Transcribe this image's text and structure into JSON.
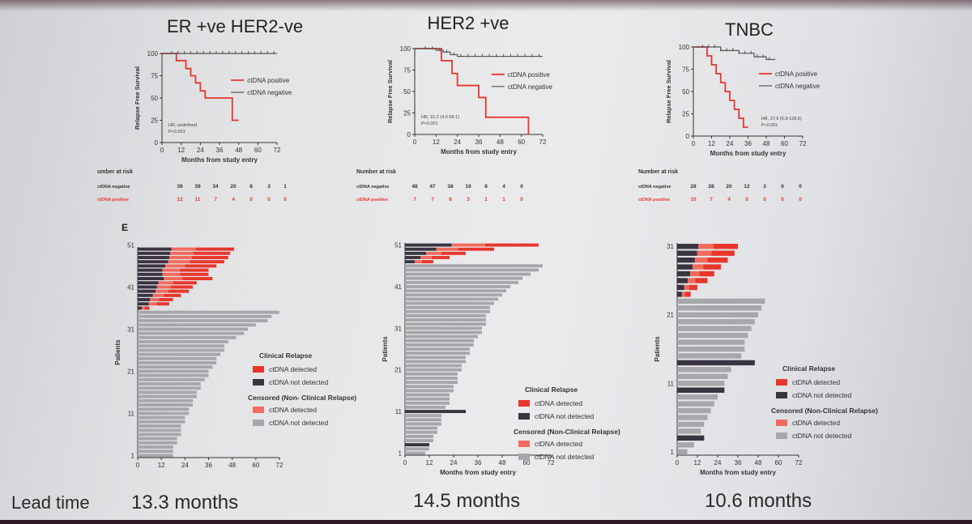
{
  "panels": [
    {
      "title": "ER +ve HER2-ve",
      "lead_time": "13.3 months",
      "km": {
        "ylabel": "Relapse Free Survival",
        "xlabel": "Months from study entry",
        "yticks": [
          "0",
          "25",
          "50",
          "75",
          "100"
        ],
        "xticks": [
          "0",
          "12",
          "24",
          "36",
          "48",
          "60",
          "72"
        ],
        "legend": [
          "ctDNA positive",
          "ctDNA negative"
        ],
        "hr_lines": [
          "HR, undefined",
          "P<0.001"
        ],
        "hr_legend_pos": "bottom-left"
      },
      "risk": {
        "header": "umber at risk",
        "rows": [
          {
            "label": "ctDNA negative",
            "values": [
              "39",
              "39",
              "34",
              "20",
              "8",
              "3",
              "1"
            ]
          },
          {
            "label": "ctDNA positive",
            "values": [
              "12",
              "11",
              "7",
              "4",
              "0",
              "0",
              "0"
            ]
          }
        ]
      },
      "swimmer": {
        "panel_letter": "E",
        "ylabel": "Patients",
        "xlabel": "",
        "xticks": [
          "0",
          "12",
          "24",
          "36",
          "48",
          "60",
          "72"
        ],
        "yticks": [
          "1",
          "11",
          "21",
          "31",
          "41",
          "51"
        ]
      }
    },
    {
      "title": "HER2 +ve",
      "lead_time": "14.5 months",
      "km": {
        "ylabel": "Relapse Free Survival",
        "xlabel": "Months from study entry",
        "yticks": [
          "0",
          "25",
          "50",
          "75",
          "100"
        ],
        "xticks": [
          "0",
          "12",
          "24",
          "36",
          "48",
          "60",
          "72"
        ],
        "legend": [
          "ctDNA positive",
          "ctDNA negative"
        ],
        "hr_lines": [
          "HR, 15.2 (4.0-58.1)",
          "P<0.001"
        ]
      },
      "risk": {
        "header": "Number at risk",
        "rows": [
          {
            "label": "ctDNA negative",
            "values": [
              "48",
              "47",
              "38",
              "19",
              "8",
              "4",
              "0"
            ]
          },
          {
            "label": "ctDNA positive",
            "values": [
              "7",
              "7",
              "6",
              "3",
              "1",
              "1",
              "0"
            ]
          }
        ]
      },
      "swimmer": {
        "panel_letter": "",
        "ylabel": "Patients",
        "xlabel": "Months from study entry",
        "xticks": [
          "0",
          "12",
          "24",
          "36",
          "48",
          "60",
          "72"
        ],
        "yticks": [
          "1",
          "11",
          "21",
          "31",
          "41",
          "51"
        ]
      }
    },
    {
      "title": "TNBC",
      "lead_time": "10.6 months",
      "km": {
        "ylabel": "Relapse Free Survival",
        "xlabel": "Months from study entry",
        "yticks": [
          "0",
          "25",
          "50",
          "75",
          "100"
        ],
        "xticks": [
          "0",
          "12",
          "24",
          "36",
          "48",
          "60",
          "72"
        ],
        "legend": [
          "ctDNA positive",
          "ctDNA negative"
        ],
        "hr_lines": [
          "HR, 27.6 (5.9-128.6)",
          "P<0.001"
        ]
      },
      "risk": {
        "header": "Number at risk",
        "rows": [
          {
            "label": "ctDNA negative",
            "values": [
              "28",
              "28",
              "20",
              "12",
              "3",
              "0",
              "0"
            ]
          },
          {
            "label": "ctDNA positive",
            "values": [
              "10",
              "7",
              "4",
              "0",
              "0",
              "0",
              "0"
            ]
          }
        ]
      },
      "swimmer": {
        "panel_letter": "",
        "ylabel": "Patients",
        "xlabel": "Months from study entry",
        "xticks": [
          "0",
          "12",
          "24",
          "36",
          "48",
          "60",
          "72"
        ],
        "yticks": [
          "1",
          "11",
          "21",
          "31"
        ]
      }
    }
  ],
  "lead_time_label": "Lead time",
  "legend": {
    "clinical_title": "Clinical Relapse",
    "clinical_items": [
      "ctDNA detected",
      "ctDNA not detected"
    ],
    "censored_title": "Censored (Non- Clinical Relapse)",
    "censored_title_alt": "Censored (Non-Clinical Relapse)",
    "censored_items": [
      "ctDNA detected",
      "ctDNA not detected"
    ]
  },
  "colors": {
    "red": "#e8362b",
    "dark": "#3a3340",
    "light_red": "#f26a5e",
    "gray": "#a6a7aa",
    "km_neg": "#555555"
  },
  "chart_data": [
    {
      "type": "line",
      "title": "ER +ve HER2-ve",
      "xlabel": "Months from study entry",
      "ylabel": "Relapse Free Survival",
      "xlim": [
        0,
        72
      ],
      "ylim": [
        0,
        100
      ],
      "series": [
        {
          "name": "ctDNA positive",
          "x": [
            0,
            6,
            9,
            12,
            15,
            18,
            21,
            24,
            27,
            30,
            36,
            42,
            44,
            48
          ],
          "y": [
            100,
            100,
            92,
            92,
            83,
            75,
            67,
            58,
            50,
            50,
            50,
            50,
            25,
            25
          ]
        },
        {
          "name": "ctDNA negative",
          "x": [
            0,
            72
          ],
          "y": [
            100,
            100
          ]
        }
      ]
    },
    {
      "type": "line",
      "title": "HER2 +ve",
      "xlabel": "Months from study entry",
      "ylabel": "Relapse Free Survival",
      "xlim": [
        0,
        72
      ],
      "ylim": [
        0,
        100
      ],
      "series": [
        {
          "name": "ctDNA positive",
          "x": [
            0,
            12,
            15,
            18,
            21,
            24,
            30,
            36,
            40,
            48,
            60,
            64
          ],
          "y": [
            100,
            100,
            86,
            86,
            71,
            57,
            57,
            43,
            20,
            20,
            20,
            0
          ]
        },
        {
          "name": "ctDNA negative",
          "x": [
            0,
            8,
            12,
            16,
            20,
            24,
            30,
            72
          ],
          "y": [
            100,
            100,
            98,
            96,
            93,
            91,
            91,
            91
          ]
        }
      ]
    },
    {
      "type": "line",
      "title": "TNBC",
      "xlabel": "Months from study entry",
      "ylabel": "Relapse Free Survival",
      "xlim": [
        0,
        72
      ],
      "ylim": [
        0,
        100
      ],
      "series": [
        {
          "name": "ctDNA positive",
          "x": [
            0,
            6,
            9,
            12,
            15,
            18,
            21,
            24,
            27,
            30,
            33,
            36
          ],
          "y": [
            100,
            100,
            90,
            80,
            70,
            60,
            50,
            40,
            30,
            20,
            10,
            10
          ]
        },
        {
          "name": "ctDNA negative",
          "x": [
            0,
            12,
            18,
            24,
            30,
            36,
            40,
            44,
            48,
            54
          ],
          "y": [
            100,
            100,
            96,
            96,
            93,
            93,
            89,
            89,
            86,
            86
          ]
        }
      ]
    },
    {
      "type": "bar",
      "title": "",
      "subtype": "swimmer",
      "ylabel": "Patients",
      "xlim": [
        0,
        72
      ],
      "bars_by_row": "patient 51 (top) to patient 1 (bottom), months of follow up",
      "series": [
        {
          "name": "ER +ve HER2-ve",
          "totals": [
            49,
            47,
            46,
            44,
            40,
            36,
            36,
            38,
            30,
            28,
            26,
            22,
            18,
            16,
            6,
            72,
            68,
            66,
            60,
            56,
            54,
            50,
            46,
            44,
            44,
            42,
            40,
            40,
            38,
            36,
            36,
            34,
            32,
            32,
            30,
            30,
            28,
            28,
            26,
            26,
            24,
            24,
            22,
            22,
            22,
            20,
            20,
            18,
            18,
            18
          ]
        },
        {
          "name": "HER2 +ve",
          "totals": [
            66,
            44,
            30,
            22,
            14,
            68,
            66,
            62,
            58,
            56,
            52,
            50,
            48,
            46,
            44,
            42,
            42,
            40,
            40,
            40,
            38,
            38,
            36,
            34,
            34,
            32,
            32,
            30,
            30,
            28,
            28,
            26,
            26,
            26,
            24,
            24,
            22,
            22,
            22,
            20,
            20,
            18,
            18,
            18,
            16,
            16,
            14,
            14,
            12,
            12,
            10
          ]
        },
        {
          "name": "TNBC",
          "totals": [
            36,
            34,
            30,
            26,
            22,
            18,
            12,
            8,
            52,
            50,
            48,
            46,
            44,
            42,
            40,
            40,
            38,
            34,
            32,
            30,
            28,
            26,
            24,
            22,
            20,
            18,
            16,
            14,
            12,
            10,
            6
          ]
        }
      ]
    }
  ]
}
